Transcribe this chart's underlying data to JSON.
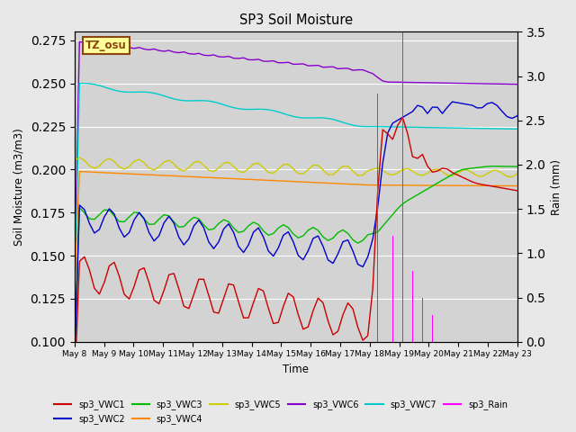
{
  "title": "SP3 Soil Moisture",
  "xlabel": "Time",
  "ylabel_left": "Soil Moisture (m3/m3)",
  "ylabel_right": "Rain (mm)",
  "ylim_left": [
    0.1,
    0.28
  ],
  "ylim_right": [
    0.0,
    3.5
  ],
  "figsize": [
    6.4,
    4.8
  ],
  "dpi": 100,
  "bg_color": "#e8e8e8",
  "plot_bg_color": "#d3d3d3",
  "annotation_text": "TZ_osu",
  "annotation_fg": "#8B4513",
  "annotation_bg": "#FFFF99",
  "annotation_border": "#8B4513",
  "series_colors": {
    "sp3_VWC1": "#cc0000",
    "sp3_VWC2": "#0000cc",
    "sp3_VWC3": "#00bb00",
    "sp3_VWC4": "#ff8800",
    "sp3_VWC5": "#cccc00",
    "sp3_VWC6": "#8800cc",
    "sp3_VWC7": "#00cccc",
    "sp3_Rain": "#ff00ff"
  },
  "x_tick_labels": [
    "May 8",
    "May 9",
    "May 10",
    "May 11",
    "May 12",
    "May 13",
    "May 14",
    "May 15",
    "May 16",
    "May 17",
    "May 18",
    "May 19",
    "May 20",
    "May 21",
    "May 22",
    "May 23"
  ],
  "lw": 1.0,
  "rain_bar_width": 0.015
}
